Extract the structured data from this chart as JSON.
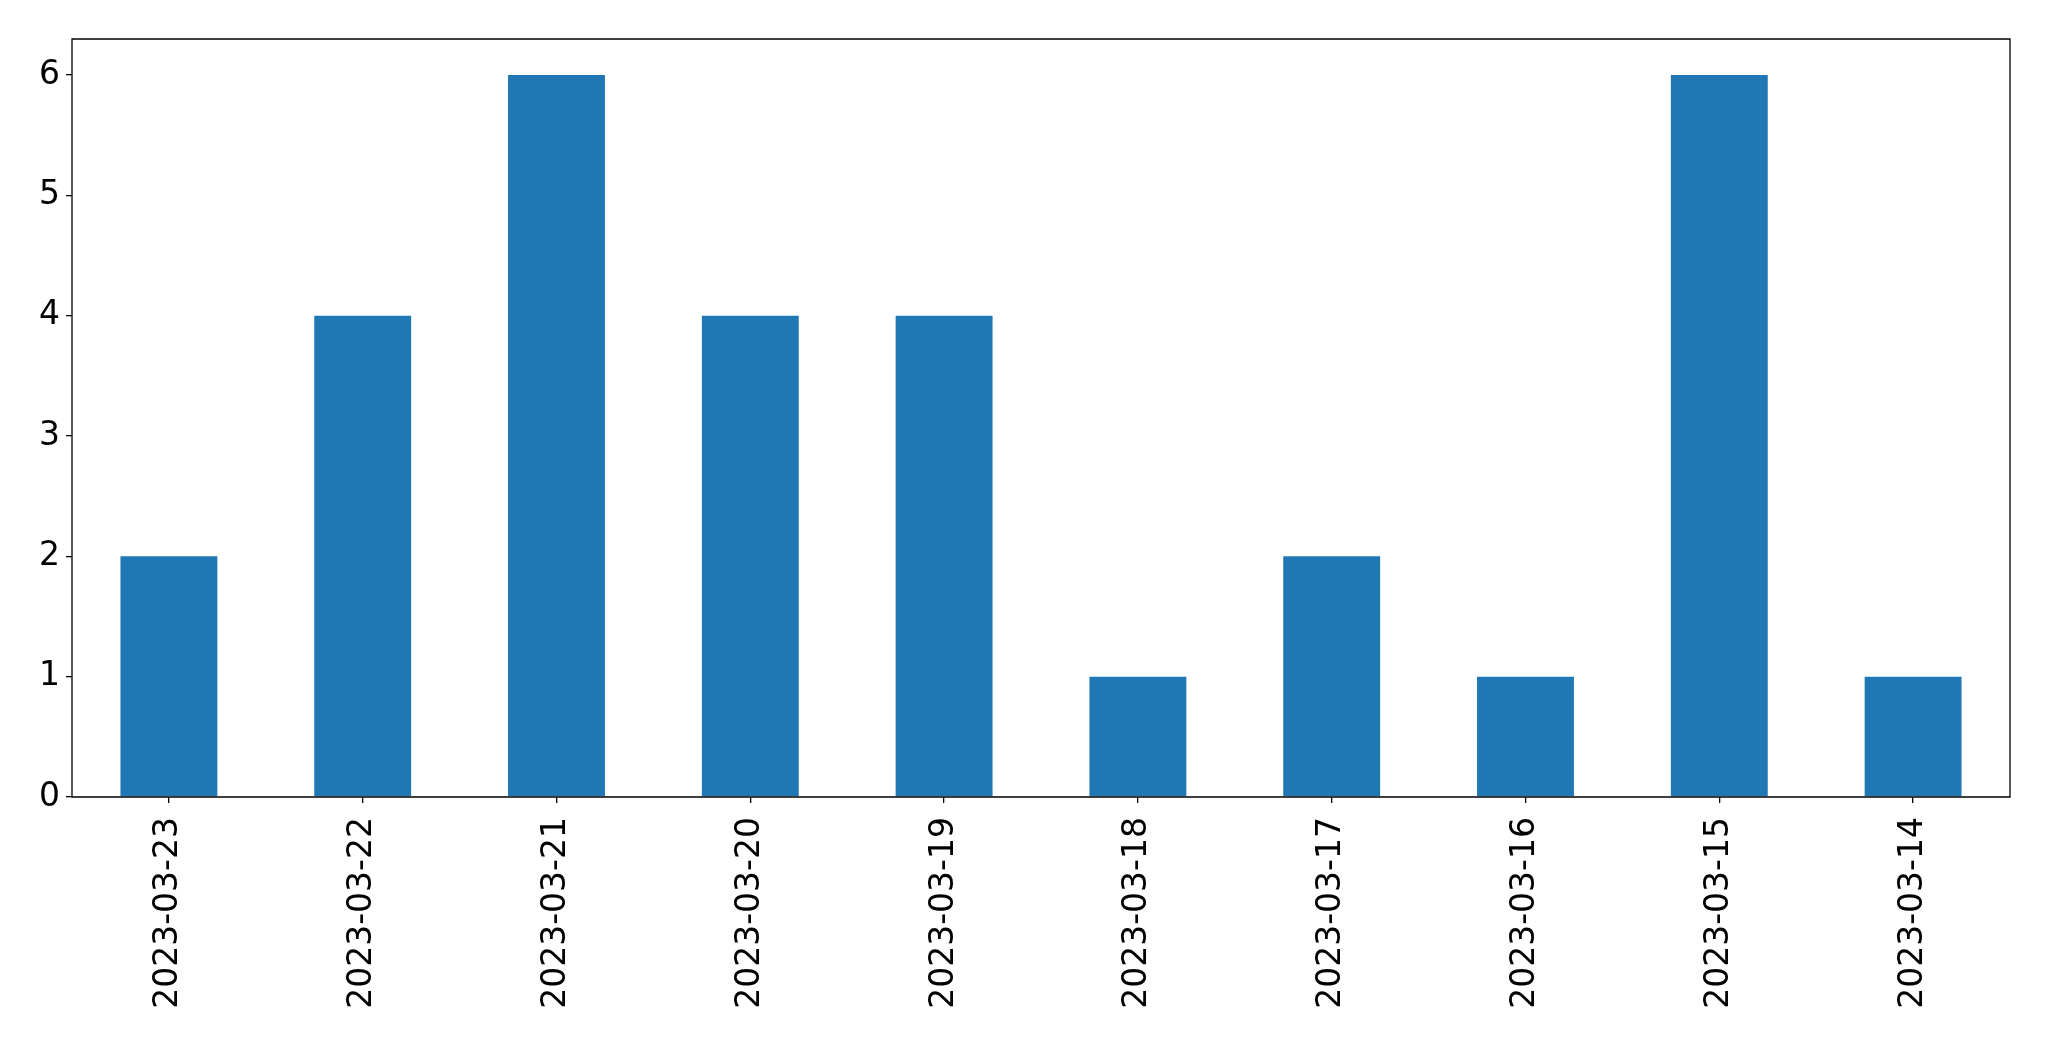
{
  "chart_data": {
    "type": "bar",
    "categories": [
      "2023-03-23",
      "2023-03-22",
      "2023-03-21",
      "2023-03-20",
      "2023-03-19",
      "2023-03-18",
      "2023-03-17",
      "2023-03-16",
      "2023-03-15",
      "2023-03-14"
    ],
    "values": [
      2,
      4,
      6,
      4,
      4,
      1,
      2,
      1,
      6,
      1
    ],
    "color": "#1f77b4",
    "ylim": [
      0,
      6.3
    ],
    "yticks": [
      0,
      1,
      2,
      3,
      4,
      5,
      6
    ]
  }
}
